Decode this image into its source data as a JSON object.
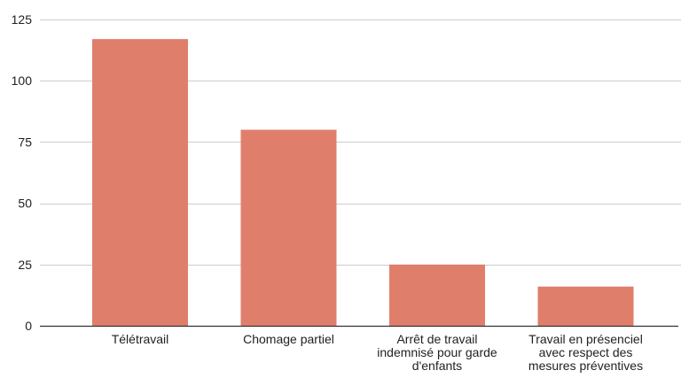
{
  "chart_data": {
    "type": "bar",
    "title": "",
    "xlabel": "",
    "ylabel": "",
    "categories": [
      "Télétravail",
      "Chomage partiel",
      "Arrêt de travail indemnisé pour garde d'enfants",
      "Travail en présenciel avec respect des mesures préventives"
    ],
    "category_label_lines": [
      [
        "Télétravail"
      ],
      [
        "Chomage partiel"
      ],
      [
        "Arrêt de travail",
        "indemnisé pour garde",
        "d'enfants"
      ],
      [
        "Travail en présenciel",
        "avec respect des",
        "mesures préventives"
      ]
    ],
    "values": [
      117,
      80,
      25,
      16
    ],
    "ylim": [
      0,
      125
    ],
    "yticks": [
      "0",
      "25",
      "50",
      "75",
      "100",
      "125"
    ],
    "grid": true,
    "legend": "none",
    "colors": {
      "bar": "#df7f6b",
      "grid": "#cccccc",
      "axis": "#333333",
      "text": "#222222"
    }
  }
}
